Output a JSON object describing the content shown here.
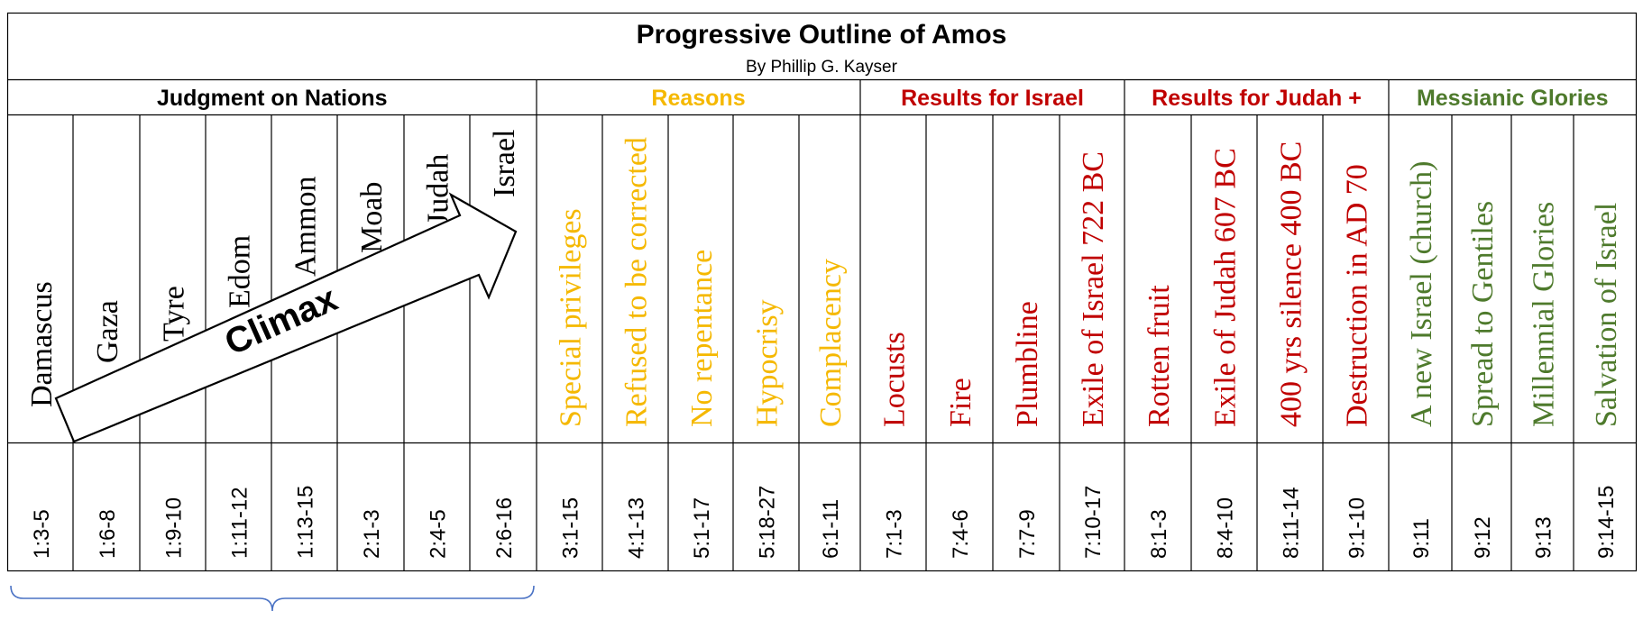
{
  "title": "Progressive Outline of Amos",
  "subtitle": "By Phillip G. Kayser",
  "climax_label": "Climax",
  "colors": {
    "black": "#000000",
    "reasons": "#f5b800",
    "results": "#c00000",
    "messianic": "#4e7a2c",
    "bracket": "#4a72c4"
  },
  "groups": [
    {
      "label": "Judgment on Nations",
      "color": "#000000"
    },
    {
      "label": "Reasons",
      "color": "#f5b800"
    },
    {
      "label": "Results for Israel",
      "color": "#c00000"
    },
    {
      "label": "Results for Judah +",
      "color": "#c00000"
    },
    {
      "label": "Messianic Glories",
      "color": "#4e7a2c"
    }
  ],
  "columns": [
    {
      "topic": "Damascus",
      "ref": "1:3-5",
      "group": 0
    },
    {
      "topic": "Gaza",
      "ref": "1:6-8",
      "group": 0
    },
    {
      "topic": "Tyre",
      "ref": "1:9-10",
      "group": 0
    },
    {
      "topic": "Edom",
      "ref": "1:11-12",
      "group": 0
    },
    {
      "topic": "Ammon",
      "ref": "1:13-15",
      "group": 0
    },
    {
      "topic": "Moab",
      "ref": "2:1-3",
      "group": 0
    },
    {
      "topic": "Judah",
      "ref": "2:4-5",
      "group": 0
    },
    {
      "topic": "Israel",
      "ref": "2:6-16",
      "group": 0
    },
    {
      "topic": "Special privileges",
      "ref": "3:1-15",
      "group": 1
    },
    {
      "topic": "Refused to be corrected",
      "ref": "4:1-13",
      "group": 1
    },
    {
      "topic": "No repentance",
      "ref": "5:1-17",
      "group": 1
    },
    {
      "topic": "Hypocrisy",
      "ref": "5:18-27",
      "group": 1
    },
    {
      "topic": "Complacency",
      "ref": "6:1-11",
      "group": 1
    },
    {
      "topic": "Locusts",
      "ref": "7:1-3",
      "group": 2
    },
    {
      "topic": "Fire",
      "ref": "7:4-6",
      "group": 2
    },
    {
      "topic": "Plumbline",
      "ref": "7:7-9",
      "group": 2
    },
    {
      "topic": "Exile of Israel 722 BC",
      "ref": "7:10-17",
      "group": 2
    },
    {
      "topic": "Rotten fruit",
      "ref": "8:1-3",
      "group": 3
    },
    {
      "topic": "Exile of Judah 607 BC",
      "ref": "8:4-10",
      "group": 3
    },
    {
      "topic": "400 yrs silence 400 BC",
      "ref": "8:11-14",
      "group": 3
    },
    {
      "topic": "Destruction in AD 70",
      "ref": "9:1-10",
      "group": 3
    },
    {
      "topic": "A new Israel (church)",
      "ref": "9:11",
      "group": 4
    },
    {
      "topic": "Spread to Gentiles",
      "ref": "9:12",
      "group": 4
    },
    {
      "topic": "Millennial Glories",
      "ref": "9:13",
      "group": 4
    },
    {
      "topic": "Salvation of Israel",
      "ref": "9:14-15",
      "group": 4
    }
  ]
}
